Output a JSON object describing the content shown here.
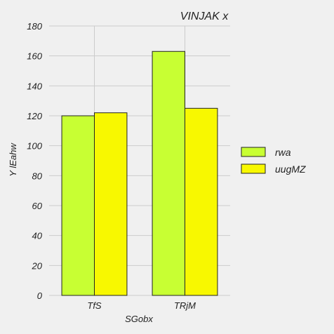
{
  "chart_data": {
    "type": "bar",
    "title": "VINJAK x",
    "xlabel": "SGobx",
    "ylabel": "Y lEahw",
    "categories": [
      "TfS",
      "TRjM"
    ],
    "series": [
      {
        "name": "rwa",
        "values": [
          120,
          163
        ],
        "color": "#c8ff33"
      },
      {
        "name": "uugMZ",
        "values": [
          122,
          125
        ],
        "color": "#f8f800"
      }
    ],
    "ylim": [
      0,
      180
    ],
    "yticks": [
      0,
      20,
      40,
      60,
      80,
      100,
      120,
      140,
      160,
      180
    ],
    "grid": true,
    "legend_position": "right"
  }
}
